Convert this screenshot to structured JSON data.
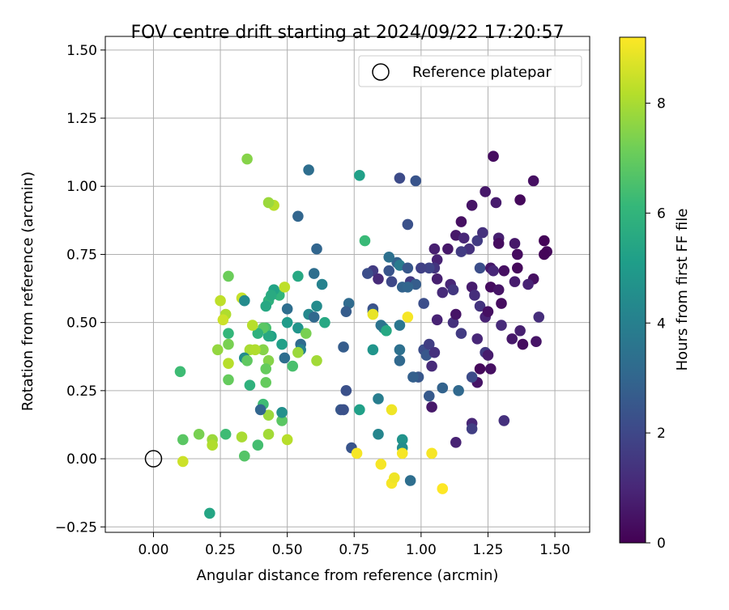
{
  "chart_data": {
    "type": "scatter",
    "title": "FOV centre drift starting at 2024/09/22 17:20:57",
    "xlabel": "Angular distance from reference (arcmin)",
    "ylabel": "Rotation from reference (arcmin)",
    "xlim": [
      -0.18,
      1.63
    ],
    "ylim": [
      -0.27,
      1.55
    ],
    "xticks": [
      0.0,
      0.25,
      0.5,
      0.75,
      1.0,
      1.25,
      1.5
    ],
    "xtick_labels": [
      "0.00",
      "0.25",
      "0.50",
      "0.75",
      "1.00",
      "1.25",
      "1.50"
    ],
    "yticks": [
      -0.25,
      0.0,
      0.25,
      0.5,
      0.75,
      1.0,
      1.25,
      1.5
    ],
    "ytick_labels": [
      "−0.25",
      "0.00",
      "0.25",
      "0.50",
      "0.75",
      "1.00",
      "1.25",
      "1.50"
    ],
    "grid": true,
    "legend": {
      "placement": "top-right",
      "label": "Reference platepar"
    },
    "reference_point": {
      "x": 0.0,
      "y": 0.0
    },
    "colorbar": {
      "label": "Hours from first FF file",
      "range": [
        0,
        9.2
      ],
      "ticks": [
        0,
        2,
        4,
        6,
        8
      ],
      "tick_labels": [
        "0",
        "2",
        "4",
        "6",
        "8"
      ],
      "colormap": "viridis",
      "stops": [
        "#440154",
        "#482878",
        "#3e4989",
        "#31688e",
        "#26828e",
        "#1f9e89",
        "#35b779",
        "#6ece58",
        "#b5de2b",
        "#fde725"
      ]
    },
    "points": [
      {
        "x": 1.27,
        "y": 1.11,
        "c": 0.3
      },
      {
        "x": 1.42,
        "y": 1.02,
        "c": 0.4
      },
      {
        "x": 1.24,
        "y": 0.98,
        "c": 0.6
      },
      {
        "x": 1.37,
        "y": 0.95,
        "c": 0.2
      },
      {
        "x": 1.19,
        "y": 0.93,
        "c": 0.5
      },
      {
        "x": 1.28,
        "y": 0.94,
        "c": 0.7
      },
      {
        "x": 1.15,
        "y": 0.87,
        "c": 0.4
      },
      {
        "x": 1.13,
        "y": 0.82,
        "c": 0.6
      },
      {
        "x": 1.16,
        "y": 0.81,
        "c": 1.0
      },
      {
        "x": 1.21,
        "y": 0.8,
        "c": 1.6
      },
      {
        "x": 1.23,
        "y": 0.83,
        "c": 1.3
      },
      {
        "x": 1.29,
        "y": 0.81,
        "c": 0.8
      },
      {
        "x": 1.29,
        "y": 0.79,
        "c": 0.3
      },
      {
        "x": 1.35,
        "y": 0.79,
        "c": 0.6
      },
      {
        "x": 1.36,
        "y": 0.75,
        "c": 0.3
      },
      {
        "x": 1.46,
        "y": 0.8,
        "c": 0.1
      },
      {
        "x": 1.47,
        "y": 0.76,
        "c": 0.2
      },
      {
        "x": 1.46,
        "y": 0.75,
        "c": 0.1
      },
      {
        "x": 1.05,
        "y": 0.77,
        "c": 0.8
      },
      {
        "x": 1.1,
        "y": 0.77,
        "c": 0.6
      },
      {
        "x": 1.18,
        "y": 0.77,
        "c": 1.3
      },
      {
        "x": 1.15,
        "y": 0.76,
        "c": 1.6
      },
      {
        "x": 1.22,
        "y": 0.7,
        "c": 2.2
      },
      {
        "x": 1.26,
        "y": 0.7,
        "c": 0.6
      },
      {
        "x": 1.27,
        "y": 0.69,
        "c": 1.0
      },
      {
        "x": 1.31,
        "y": 0.69,
        "c": 0.4
      },
      {
        "x": 1.36,
        "y": 0.7,
        "c": 0.2
      },
      {
        "x": 1.06,
        "y": 0.73,
        "c": 0.9
      },
      {
        "x": 1.05,
        "y": 0.7,
        "c": 1.4
      },
      {
        "x": 1.03,
        "y": 0.7,
        "c": 1.9
      },
      {
        "x": 1.06,
        "y": 0.66,
        "c": 0.8
      },
      {
        "x": 1.11,
        "y": 0.64,
        "c": 1.0
      },
      {
        "x": 1.12,
        "y": 0.62,
        "c": 1.5
      },
      {
        "x": 1.19,
        "y": 0.63,
        "c": 0.7
      },
      {
        "x": 1.2,
        "y": 0.6,
        "c": 1.2
      },
      {
        "x": 1.26,
        "y": 0.63,
        "c": 0.3
      },
      {
        "x": 1.29,
        "y": 0.62,
        "c": 0.5
      },
      {
        "x": 1.35,
        "y": 0.65,
        "c": 0.7
      },
      {
        "x": 1.42,
        "y": 0.66,
        "c": 0.4
      },
      {
        "x": 1.4,
        "y": 0.64,
        "c": 0.9
      },
      {
        "x": 1.08,
        "y": 0.61,
        "c": 1.1
      },
      {
        "x": 1.3,
        "y": 0.57,
        "c": 0.3
      },
      {
        "x": 1.22,
        "y": 0.56,
        "c": 1.4
      },
      {
        "x": 1.24,
        "y": 0.52,
        "c": 0.9
      },
      {
        "x": 1.25,
        "y": 0.54,
        "c": 0.4
      },
      {
        "x": 1.3,
        "y": 0.49,
        "c": 1.1
      },
      {
        "x": 1.34,
        "y": 0.44,
        "c": 0.6
      },
      {
        "x": 1.38,
        "y": 0.42,
        "c": 0.3
      },
      {
        "x": 1.37,
        "y": 0.47,
        "c": 0.8
      },
      {
        "x": 1.43,
        "y": 0.43,
        "c": 0.5
      },
      {
        "x": 1.44,
        "y": 0.52,
        "c": 1.2
      },
      {
        "x": 1.06,
        "y": 0.51,
        "c": 0.9
      },
      {
        "x": 1.12,
        "y": 0.5,
        "c": 1.3
      },
      {
        "x": 1.13,
        "y": 0.53,
        "c": 0.5
      },
      {
        "x": 1.15,
        "y": 0.46,
        "c": 1.6
      },
      {
        "x": 1.21,
        "y": 0.44,
        "c": 1.0
      },
      {
        "x": 1.24,
        "y": 0.39,
        "c": 1.6
      },
      {
        "x": 1.25,
        "y": 0.38,
        "c": 0.7
      },
      {
        "x": 1.26,
        "y": 0.33,
        "c": 0.4
      },
      {
        "x": 1.22,
        "y": 0.33,
        "c": 0.2
      },
      {
        "x": 1.21,
        "y": 0.28,
        "c": 0.5
      },
      {
        "x": 1.01,
        "y": 0.4,
        "c": 2.2
      },
      {
        "x": 1.02,
        "y": 0.38,
        "c": 2.5
      },
      {
        "x": 1.03,
        "y": 0.42,
        "c": 1.7
      },
      {
        "x": 1.05,
        "y": 0.39,
        "c": 1.3
      },
      {
        "x": 1.04,
        "y": 0.34,
        "c": 1.1
      },
      {
        "x": 0.99,
        "y": 0.3,
        "c": 2.5
      },
      {
        "x": 0.97,
        "y": 0.3,
        "c": 2.8
      },
      {
        "x": 1.03,
        "y": 0.23,
        "c": 2.6
      },
      {
        "x": 1.04,
        "y": 0.19,
        "c": 0.6
      },
      {
        "x": 1.08,
        "y": 0.26,
        "c": 2.9
      },
      {
        "x": 1.14,
        "y": 0.25,
        "c": 3.1
      },
      {
        "x": 1.19,
        "y": 0.3,
        "c": 2.1
      },
      {
        "x": 1.19,
        "y": 0.13,
        "c": 1.0
      },
      {
        "x": 1.19,
        "y": 0.11,
        "c": 1.7
      },
      {
        "x": 1.31,
        "y": 0.14,
        "c": 1.3
      },
      {
        "x": 1.13,
        "y": 0.06,
        "c": 0.9
      },
      {
        "x": 0.98,
        "y": 1.02,
        "c": 2.4
      },
      {
        "x": 0.92,
        "y": 1.03,
        "c": 2.1
      },
      {
        "x": 0.95,
        "y": 0.86,
        "c": 2.3
      },
      {
        "x": 0.88,
        "y": 0.69,
        "c": 2.4
      },
      {
        "x": 0.91,
        "y": 0.72,
        "c": 2.9
      },
      {
        "x": 0.82,
        "y": 0.69,
        "c": 1.6
      },
      {
        "x": 0.84,
        "y": 0.66,
        "c": 1.1
      },
      {
        "x": 0.8,
        "y": 0.68,
        "c": 2.2
      },
      {
        "x": 0.88,
        "y": 0.74,
        "c": 3.4
      },
      {
        "x": 0.92,
        "y": 0.71,
        "c": 3.8
      },
      {
        "x": 0.95,
        "y": 0.7,
        "c": 2.5
      },
      {
        "x": 0.93,
        "y": 0.63,
        "c": 2.9
      },
      {
        "x": 0.89,
        "y": 0.65,
        "c": 2.0
      },
      {
        "x": 0.96,
        "y": 0.65,
        "c": 1.6
      },
      {
        "x": 0.98,
        "y": 0.64,
        "c": 2.7
      },
      {
        "x": 1.0,
        "y": 0.7,
        "c": 1.8
      },
      {
        "x": 1.01,
        "y": 0.57,
        "c": 2.2
      },
      {
        "x": 0.95,
        "y": 0.63,
        "c": 3.0
      },
      {
        "x": 0.86,
        "y": 0.48,
        "c": 4.5
      },
      {
        "x": 0.85,
        "y": 0.49,
        "c": 3.5
      },
      {
        "x": 0.92,
        "y": 0.49,
        "c": 3.6
      },
      {
        "x": 0.92,
        "y": 0.4,
        "c": 3.4
      },
      {
        "x": 0.92,
        "y": 0.36,
        "c": 3.1
      },
      {
        "x": 0.93,
        "y": 0.07,
        "c": 4.7
      },
      {
        "x": 0.93,
        "y": 0.04,
        "c": 4.5
      },
      {
        "x": 0.96,
        "y": -0.08,
        "c": 3.3
      },
      {
        "x": 0.84,
        "y": 0.22,
        "c": 3.9
      },
      {
        "x": 0.84,
        "y": 0.09,
        "c": 4.2
      },
      {
        "x": 0.82,
        "y": 0.55,
        "c": 2.3
      },
      {
        "x": 0.82,
        "y": 0.54,
        "c": 2.6
      },
      {
        "x": 0.82,
        "y": 0.4,
        "c": 4.8
      },
      {
        "x": 0.77,
        "y": 0.18,
        "c": 5.2
      },
      {
        "x": 0.73,
        "y": 0.57,
        "c": 3.2
      },
      {
        "x": 0.72,
        "y": 0.54,
        "c": 2.7
      },
      {
        "x": 0.71,
        "y": 0.41,
        "c": 2.7
      },
      {
        "x": 0.72,
        "y": 0.25,
        "c": 2.3
      },
      {
        "x": 0.7,
        "y": 0.18,
        "c": 2.5
      },
      {
        "x": 0.71,
        "y": 0.18,
        "c": 2.3
      },
      {
        "x": 0.74,
        "y": 0.04,
        "c": 2.4
      },
      {
        "x": 0.58,
        "y": 1.06,
        "c": 3.3
      },
      {
        "x": 0.61,
        "y": 0.77,
        "c": 3.0
      },
      {
        "x": 0.54,
        "y": 0.89,
        "c": 3.0
      },
      {
        "x": 0.6,
        "y": 0.68,
        "c": 3.3
      },
      {
        "x": 0.63,
        "y": 0.64,
        "c": 4.1
      },
      {
        "x": 0.58,
        "y": 0.53,
        "c": 4.3
      },
      {
        "x": 0.61,
        "y": 0.56,
        "c": 4.4
      },
      {
        "x": 0.6,
        "y": 0.52,
        "c": 3.1
      },
      {
        "x": 0.55,
        "y": 0.42,
        "c": 3.2
      },
      {
        "x": 0.55,
        "y": 0.4,
        "c": 4.1
      },
      {
        "x": 0.54,
        "y": 0.48,
        "c": 4.8
      },
      {
        "x": 0.57,
        "y": 0.46,
        "c": 7.3
      },
      {
        "x": 0.64,
        "y": 0.5,
        "c": 5.5
      },
      {
        "x": 0.5,
        "y": 0.5,
        "c": 5.0
      },
      {
        "x": 0.5,
        "y": 0.55,
        "c": 3.3
      },
      {
        "x": 0.48,
        "y": 0.42,
        "c": 5.2
      },
      {
        "x": 0.49,
        "y": 0.37,
        "c": 3.3
      },
      {
        "x": 0.54,
        "y": 0.39,
        "c": 7.8
      },
      {
        "x": 0.54,
        "y": 0.67,
        "c": 5.5
      },
      {
        "x": 0.52,
        "y": 0.34,
        "c": 6.5
      },
      {
        "x": 0.61,
        "y": 0.36,
        "c": 7.9
      },
      {
        "x": 0.47,
        "y": 0.6,
        "c": 6.0
      },
      {
        "x": 0.45,
        "y": 0.62,
        "c": 5.3
      },
      {
        "x": 0.43,
        "y": 0.58,
        "c": 5.9
      },
      {
        "x": 0.44,
        "y": 0.6,
        "c": 5.6
      },
      {
        "x": 0.42,
        "y": 0.56,
        "c": 5.5
      },
      {
        "x": 0.44,
        "y": 0.45,
        "c": 5.2
      },
      {
        "x": 0.42,
        "y": 0.48,
        "c": 6.5
      },
      {
        "x": 0.43,
        "y": 0.45,
        "c": 5.5
      },
      {
        "x": 0.41,
        "y": 0.48,
        "c": 6.8
      },
      {
        "x": 0.39,
        "y": 0.46,
        "c": 5.9
      },
      {
        "x": 0.48,
        "y": 0.14,
        "c": 6.8
      },
      {
        "x": 0.48,
        "y": 0.17,
        "c": 4.6
      },
      {
        "x": 0.43,
        "y": 0.16,
        "c": 7.8
      },
      {
        "x": 0.41,
        "y": 0.2,
        "c": 6.3
      },
      {
        "x": 0.4,
        "y": 0.18,
        "c": 3.0
      },
      {
        "x": 0.43,
        "y": 0.09,
        "c": 7.9
      },
      {
        "x": 0.39,
        "y": 0.05,
        "c": 6.4
      },
      {
        "x": 0.5,
        "y": 0.07,
        "c": 8.2
      },
      {
        "x": 0.41,
        "y": 0.4,
        "c": 7.5
      },
      {
        "x": 0.43,
        "y": 0.36,
        "c": 7.5
      },
      {
        "x": 0.42,
        "y": 0.33,
        "c": 7.0
      },
      {
        "x": 0.42,
        "y": 0.28,
        "c": 7.0
      },
      {
        "x": 0.36,
        "y": 0.4,
        "c": 8.0
      },
      {
        "x": 0.38,
        "y": 0.4,
        "c": 8.1
      },
      {
        "x": 0.37,
        "y": 0.49,
        "c": 8.2
      },
      {
        "x": 0.49,
        "y": 0.63,
        "c": 8.3
      },
      {
        "x": 0.45,
        "y": 0.93,
        "c": 8.2
      },
      {
        "x": 0.43,
        "y": 0.94,
        "c": 7.8
      },
      {
        "x": 0.35,
        "y": 1.1,
        "c": 7.5
      },
      {
        "x": 0.33,
        "y": 0.59,
        "c": 8.4
      },
      {
        "x": 0.34,
        "y": 0.37,
        "c": 4.5
      },
      {
        "x": 0.35,
        "y": 0.36,
        "c": 6.9
      },
      {
        "x": 0.34,
        "y": 0.58,
        "c": 4.4
      },
      {
        "x": 0.28,
        "y": 0.67,
        "c": 7.1
      },
      {
        "x": 0.28,
        "y": 0.46,
        "c": 6.1
      },
      {
        "x": 0.28,
        "y": 0.42,
        "c": 7.3
      },
      {
        "x": 0.27,
        "y": 0.53,
        "c": 8.1
      },
      {
        "x": 0.26,
        "y": 0.51,
        "c": 8.5
      },
      {
        "x": 0.25,
        "y": 0.58,
        "c": 8.3
      },
      {
        "x": 0.24,
        "y": 0.4,
        "c": 7.7
      },
      {
        "x": 0.28,
        "y": 0.35,
        "c": 8.2
      },
      {
        "x": 0.28,
        "y": 0.29,
        "c": 7.0
      },
      {
        "x": 0.36,
        "y": 0.27,
        "c": 5.9
      },
      {
        "x": 0.33,
        "y": 0.08,
        "c": 8.0
      },
      {
        "x": 0.34,
        "y": 0.01,
        "c": 6.7
      },
      {
        "x": 0.27,
        "y": 0.09,
        "c": 6.3
      },
      {
        "x": 0.22,
        "y": 0.07,
        "c": 7.8
      },
      {
        "x": 0.22,
        "y": 0.05,
        "c": 8.1
      },
      {
        "x": 0.17,
        "y": 0.09,
        "c": 7.3
      },
      {
        "x": 0.11,
        "y": 0.07,
        "c": 6.8
      },
      {
        "x": 0.11,
        "y": -0.01,
        "c": 8.5
      },
      {
        "x": 0.1,
        "y": 0.32,
        "c": 6.3
      },
      {
        "x": 0.21,
        "y": -0.2,
        "c": 5.4
      },
      {
        "x": 0.77,
        "y": 1.04,
        "c": 5.2
      },
      {
        "x": 0.79,
        "y": 0.8,
        "c": 6.2
      },
      {
        "x": 0.87,
        "y": 0.47,
        "c": 5.5
      },
      {
        "x": 0.82,
        "y": 0.53,
        "c": 8.9
      },
      {
        "x": 0.95,
        "y": 0.52,
        "c": 9.1
      },
      {
        "x": 0.89,
        "y": 0.18,
        "c": 9.0
      },
      {
        "x": 0.76,
        "y": 0.02,
        "c": 9.1
      },
      {
        "x": 0.85,
        "y": -0.02,
        "c": 9.1
      },
      {
        "x": 0.89,
        "y": -0.09,
        "c": 9.1
      },
      {
        "x": 0.9,
        "y": -0.07,
        "c": 9.0
      },
      {
        "x": 0.93,
        "y": 0.02,
        "c": 9.1
      },
      {
        "x": 1.04,
        "y": 0.02,
        "c": 9.1
      },
      {
        "x": 1.08,
        "y": -0.11,
        "c": 9.2
      }
    ]
  }
}
